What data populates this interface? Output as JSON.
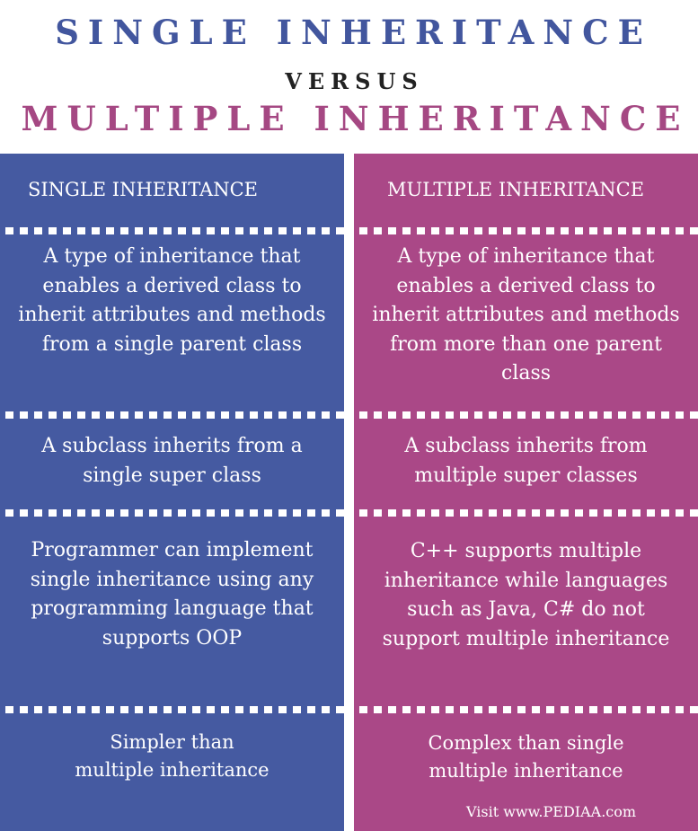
{
  "title": {
    "line1": "SINGLE INHERITANCE",
    "versus": "VERSUS",
    "line2": "MULTIPLE INHERITANCE"
  },
  "columns": {
    "left": {
      "heading": "SINGLE INHERITANCE",
      "rows": [
        "A type of inheritance that enables a derived class to inherit attributes and methods from a single parent class",
        "A subclass inherits from a single super class",
        "Programmer can implement single inheritance using any programming language that supports OOP",
        "Simpler than multiple inheritance"
      ]
    },
    "right": {
      "heading": "MULTIPLE INHERITANCE",
      "rows": [
        "A type of inheritance that enables a derived class to inherit attributes and methods from more than one parent class",
        "A subclass inherits from multiple super classes",
        "C++ supports multiple inheritance while languages such as Java, C# do not support multiple inheritance",
        "Complex than single multiple inheritance"
      ]
    }
  },
  "footer": {
    "credit": "Visit www.PEDIAA.com"
  },
  "colors": {
    "single": "#455aa1",
    "multiple": "#aa4887",
    "single_title": "#42569e",
    "multiple_title": "#a54883"
  }
}
